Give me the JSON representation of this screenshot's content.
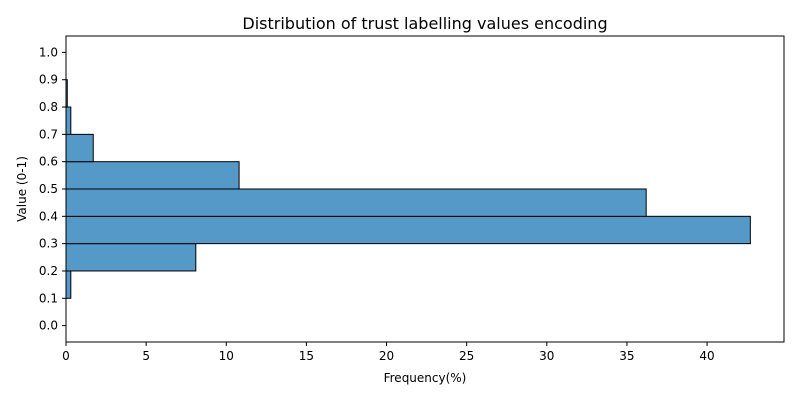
{
  "chart_data": {
    "type": "bar",
    "orientation": "horizontal",
    "title": "Distribution of trust labelling values encoding",
    "xlabel": "Frequency(%)",
    "ylabel": "Value (0-1)",
    "xlim": [
      0,
      44.8
    ],
    "ylim": [
      -0.06,
      1.06
    ],
    "xticks": [
      0,
      5,
      10,
      15,
      20,
      25,
      30,
      35,
      40
    ],
    "xtick_labels": [
      "0",
      "5",
      "10",
      "15",
      "20",
      "25",
      "30",
      "35",
      "40"
    ],
    "yticks": [
      0.0,
      0.1,
      0.2,
      0.3,
      0.4,
      0.5,
      0.6,
      0.7,
      0.8,
      0.9,
      1.0
    ],
    "ytick_labels": [
      "0.0",
      "0.1",
      "0.2",
      "0.3",
      "0.4",
      "0.5",
      "0.6",
      "0.7",
      "0.8",
      "0.9",
      "1.0"
    ],
    "bins": [
      {
        "low": 0.1,
        "high": 0.2,
        "value": 0.3
      },
      {
        "low": 0.2,
        "high": 0.3,
        "value": 8.1
      },
      {
        "low": 0.3,
        "high": 0.4,
        "value": 42.7
      },
      {
        "low": 0.4,
        "high": 0.5,
        "value": 36.2
      },
      {
        "low": 0.5,
        "high": 0.6,
        "value": 10.8
      },
      {
        "low": 0.6,
        "high": 0.7,
        "value": 1.7
      },
      {
        "low": 0.7,
        "high": 0.8,
        "value": 0.3
      },
      {
        "low": 0.8,
        "high": 0.9,
        "value": 0.08
      }
    ],
    "grid": false,
    "legend": "none",
    "bar_color": "#5599c8",
    "edge_color": "#000000"
  }
}
